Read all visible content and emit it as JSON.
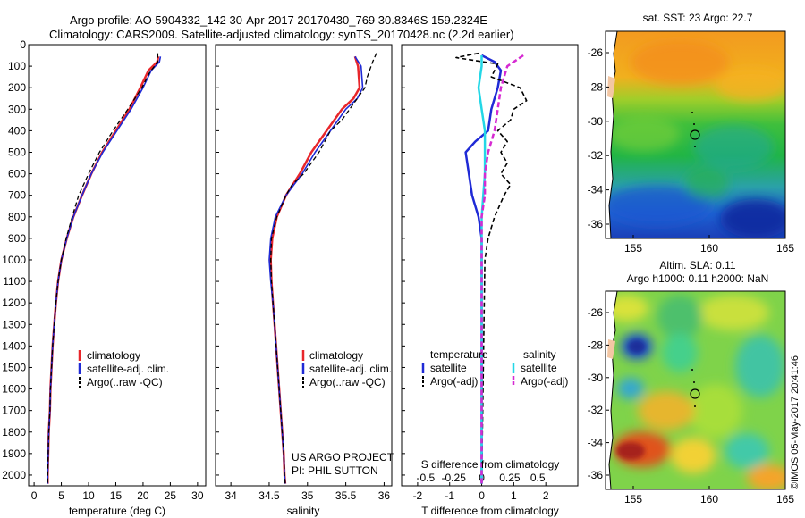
{
  "header": {
    "line1": "Argo profile: AO 5904332_142 30-Apr-2017 20170430_769 30.8346S 159.2324E",
    "line2": "Climatology: CARS2009. Satellite-adjusted climatology: synTS_20170428.nc (2.2d earlier)"
  },
  "colors": {
    "climatology": "#e8262b",
    "satellite": "#1f2ad6",
    "argo": "#000000",
    "sat_salinity": "#23d7e6",
    "argo_salinity": "#d62ad2"
  },
  "depth_ticks": [
    0,
    100,
    200,
    300,
    400,
    500,
    600,
    700,
    800,
    900,
    1000,
    1100,
    1200,
    1300,
    1400,
    1500,
    1600,
    1700,
    1800,
    1900,
    2000
  ],
  "panels": {
    "temperature": {
      "xlabel": "temperature (deg C)",
      "xticks": [
        0,
        5,
        10,
        15,
        20,
        25,
        30
      ],
      "legend": [
        "climatology",
        "satellite-adj. clim.",
        "Argo(..raw -QC)"
      ]
    },
    "salinity": {
      "xlabel": "salinity",
      "xticks": [
        34,
        34.5,
        35,
        35.5,
        36
      ],
      "legend": [
        "climatology",
        "satellite-adj. clim.",
        "Argo(..raw -QC)"
      ],
      "note1": "US ARGO PROJECT",
      "note2": "PI: PHIL SUTTON"
    },
    "difference": {
      "xlabel": "T difference from climatology",
      "top_label": "S difference from climatology",
      "t_ticks": [
        -2,
        -1,
        0,
        1,
        2
      ],
      "s_ticks": [
        "-0.5",
        "-0.25",
        "0",
        "0.25",
        "0.5"
      ],
      "legend_temp_title": "temperature",
      "legend_sal_title": "salinity",
      "legend_items": [
        "satellite",
        "Argo(-adj)",
        "satellite",
        "Argo(-adj)"
      ]
    }
  },
  "maps": {
    "sst": {
      "title": "sat. SST: 23 Argo: 22.7",
      "yticks": [
        "-26",
        "-28",
        "-30",
        "-32",
        "-34",
        "-36"
      ],
      "xticks": [
        "155",
        "160",
        "165"
      ]
    },
    "sla": {
      "title1": "Altim. SLA: 0.11",
      "title2": "Argo h1000: 0.11 h2000: NaN",
      "yticks": [
        "-26",
        "-28",
        "-30",
        "-32",
        "-34",
        "-36"
      ],
      "xticks": [
        "155",
        "160",
        "165"
      ]
    }
  },
  "credit": "©IMOS 05-May-2017 20:41:46",
  "chart_data": [
    {
      "type": "line",
      "xlabel": "temperature (deg C)",
      "xlim": [
        -1,
        31.5
      ],
      "ylim": [
        2050,
        0
      ],
      "series": [
        {
          "name": "climatology",
          "points": [
            [
              22.8,
              55
            ],
            [
              22.6,
              80
            ],
            [
              21,
              120
            ],
            [
              19.5,
              200
            ],
            [
              17.5,
              300
            ],
            [
              15,
              400
            ],
            [
              12.5,
              500
            ],
            [
              10.5,
              600
            ],
            [
              8.8,
              700
            ],
            [
              7.2,
              800
            ],
            [
              6,
              900
            ],
            [
              5,
              1000
            ],
            [
              4.4,
              1100
            ],
            [
              4,
              1200
            ],
            [
              3.7,
              1300
            ],
            [
              3.4,
              1400
            ],
            [
              3.2,
              1500
            ],
            [
              3,
              1600
            ],
            [
              2.9,
              1700
            ],
            [
              2.7,
              1800
            ],
            [
              2.6,
              1900
            ],
            [
              2.5,
              2000
            ],
            [
              2.5,
              2040
            ]
          ]
        },
        {
          "name": "satellite-adj. clim.",
          "points": [
            [
              23.2,
              55
            ],
            [
              23,
              80
            ],
            [
              21.5,
              120
            ],
            [
              20,
              200
            ],
            [
              17.8,
              300
            ],
            [
              15.2,
              400
            ],
            [
              12.6,
              500
            ],
            [
              10.5,
              600
            ],
            [
              8.8,
              700
            ],
            [
              7.2,
              800
            ],
            [
              6,
              900
            ],
            [
              5,
              1000
            ],
            [
              4.4,
              1100
            ],
            [
              4,
              1200
            ],
            [
              3.7,
              1300
            ],
            [
              3.4,
              1400
            ],
            [
              3.2,
              1500
            ],
            [
              3,
              1600
            ],
            [
              2.9,
              1700
            ],
            [
              2.7,
              1800
            ],
            [
              2.6,
              1900
            ],
            [
              2.5,
              2000
            ],
            [
              2.5,
              2040
            ]
          ]
        },
        {
          "name": "Argo(..raw -QC)",
          "points": [
            [
              22.7,
              40
            ],
            [
              22.7,
              80
            ],
            [
              21.2,
              130
            ],
            [
              19.8,
              200
            ],
            [
              17.2,
              300
            ],
            [
              14.5,
              400
            ],
            [
              12,
              500
            ],
            [
              10,
              600
            ],
            [
              8.2,
              700
            ],
            [
              7,
              800
            ],
            [
              5.9,
              900
            ],
            [
              5,
              1000
            ],
            [
              4.4,
              1100
            ],
            [
              4,
              1200
            ],
            [
              3.7,
              1300
            ],
            [
              3.4,
              1400
            ],
            [
              3.2,
              1500
            ],
            [
              3,
              1600
            ],
            [
              2.9,
              1700
            ],
            [
              2.7,
              1800
            ],
            [
              2.6,
              1900
            ],
            [
              2.5,
              2000
            ],
            [
              2.5,
              2040
            ]
          ]
        }
      ]
    },
    {
      "type": "line",
      "xlabel": "salinity",
      "xlim": [
        33.8,
        36.1
      ],
      "ylim": [
        2050,
        0
      ],
      "series": [
        {
          "name": "climatology",
          "points": [
            [
              35.62,
              55
            ],
            [
              35.66,
              100
            ],
            [
              35.68,
              200
            ],
            [
              35.6,
              250
            ],
            [
              35.45,
              300
            ],
            [
              35.25,
              400
            ],
            [
              35.05,
              500
            ],
            [
              34.9,
              600
            ],
            [
              34.72,
              700
            ],
            [
              34.6,
              800
            ],
            [
              34.54,
              900
            ],
            [
              34.52,
              1000
            ],
            [
              34.53,
              1100
            ],
            [
              34.55,
              1200
            ],
            [
              34.57,
              1300
            ],
            [
              34.59,
              1400
            ],
            [
              34.61,
              1500
            ],
            [
              34.63,
              1600
            ],
            [
              34.65,
              1700
            ],
            [
              34.67,
              1800
            ],
            [
              34.69,
              1900
            ],
            [
              34.7,
              2000
            ],
            [
              34.71,
              2040
            ]
          ]
        },
        {
          "name": "satellite-adj. clim.",
          "points": [
            [
              35.62,
              55
            ],
            [
              35.7,
              100
            ],
            [
              35.72,
              200
            ],
            [
              35.65,
              250
            ],
            [
              35.5,
              300
            ],
            [
              35.3,
              400
            ],
            [
              35.1,
              500
            ],
            [
              34.93,
              600
            ],
            [
              34.72,
              700
            ],
            [
              34.58,
              800
            ],
            [
              34.52,
              900
            ],
            [
              34.5,
              1000
            ],
            [
              34.52,
              1100
            ],
            [
              34.55,
              1200
            ],
            [
              34.57,
              1300
            ],
            [
              34.59,
              1400
            ],
            [
              34.61,
              1500
            ],
            [
              34.63,
              1600
            ],
            [
              34.65,
              1700
            ],
            [
              34.67,
              1800
            ],
            [
              34.69,
              1900
            ],
            [
              34.7,
              2000
            ],
            [
              34.71,
              2040
            ]
          ]
        },
        {
          "name": "Argo(..raw -QC)",
          "points": [
            [
              35.9,
              40
            ],
            [
              35.85,
              80
            ],
            [
              35.78,
              150
            ],
            [
              35.75,
              200
            ],
            [
              35.65,
              250
            ],
            [
              35.45,
              350
            ],
            [
              35.3,
              400
            ],
            [
              35.15,
              500
            ],
            [
              34.95,
              600
            ],
            [
              34.8,
              650
            ],
            [
              34.72,
              700
            ],
            [
              34.6,
              800
            ],
            [
              34.53,
              900
            ],
            [
              34.52,
              1000
            ],
            [
              34.53,
              1100
            ],
            [
              34.55,
              1200
            ],
            [
              34.57,
              1300
            ],
            [
              34.59,
              1400
            ],
            [
              34.61,
              1500
            ],
            [
              34.63,
              1600
            ],
            [
              34.65,
              1700
            ],
            [
              34.67,
              1800
            ],
            [
              34.69,
              1900
            ],
            [
              34.7,
              2000
            ],
            [
              34.71,
              2040
            ]
          ]
        }
      ]
    },
    {
      "type": "line",
      "xlabel": "T difference from climatology",
      "xlim": [
        -2.5,
        3
      ],
      "ylim": [
        2050,
        0
      ],
      "series": [
        {
          "name": "temperature satellite",
          "points": [
            [
              0,
              50
            ],
            [
              0.4,
              80
            ],
            [
              0.6,
              120
            ],
            [
              0.5,
              200
            ],
            [
              0.3,
              300
            ],
            [
              0.2,
              400
            ],
            [
              -0.2,
              450
            ],
            [
              -0.5,
              500
            ],
            [
              -0.4,
              600
            ],
            [
              -0.3,
              700
            ],
            [
              -0.1,
              800
            ],
            [
              0,
              900
            ],
            [
              0,
              1000
            ],
            [
              0,
              2040
            ]
          ]
        },
        {
          "name": "temperature Argo(-adj)",
          "points": [
            [
              -0.1,
              40
            ],
            [
              -0.8,
              60
            ],
            [
              0.5,
              90
            ],
            [
              0.3,
              150
            ],
            [
              1.2,
              200
            ],
            [
              1.4,
              260
            ],
            [
              1,
              300
            ],
            [
              0.9,
              350
            ],
            [
              0.5,
              400
            ],
            [
              0.8,
              450
            ],
            [
              0.6,
              500
            ],
            [
              0.8,
              550
            ],
            [
              0.6,
              600
            ],
            [
              0.9,
              650
            ],
            [
              0.7,
              700
            ],
            [
              0.4,
              800
            ],
            [
              0.2,
              900
            ],
            [
              0.1,
              1000
            ],
            [
              0,
              2040
            ]
          ]
        },
        {
          "name": "salinity satellite",
          "points": [
            [
              0,
              50
            ],
            [
              0,
              100
            ],
            [
              -0.1,
              200
            ],
            [
              0,
              300
            ],
            [
              0.1,
              400
            ],
            [
              0.1,
              500
            ],
            [
              0.1,
              600
            ],
            [
              0.05,
              700
            ],
            [
              0,
              800
            ],
            [
              0,
              2040
            ]
          ]
        },
        {
          "name": "salinity Argo(-adj)",
          "points": [
            [
              1.3,
              50
            ],
            [
              0.8,
              100
            ],
            [
              0.6,
              200
            ],
            [
              0.5,
              300
            ],
            [
              0.4,
              400
            ],
            [
              0.2,
              500
            ],
            [
              0.1,
              600
            ],
            [
              0.1,
              700
            ],
            [
              0,
              800
            ],
            [
              0,
              900
            ],
            [
              0,
              1000
            ],
            [
              0,
              2040
            ]
          ]
        }
      ]
    }
  ]
}
